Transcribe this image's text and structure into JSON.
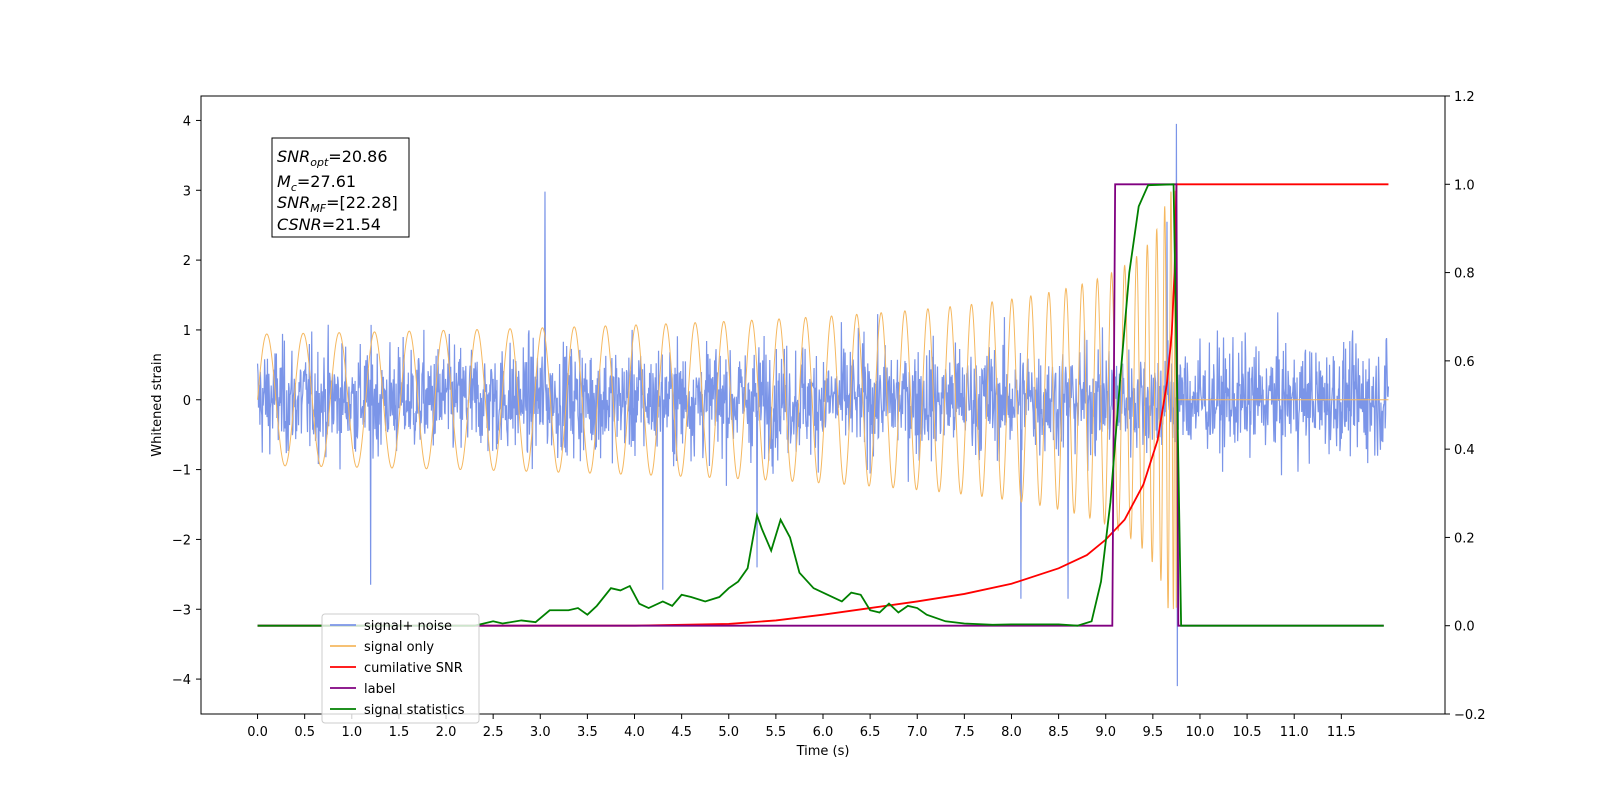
{
  "chart_data": {
    "type": "line",
    "xlabel": "Time (s)",
    "ylabel_left": "Whitened strain",
    "ylabel_right": "",
    "xlim": [
      -0.6,
      12.6
    ],
    "ylim_left": [
      -4.5,
      4.35
    ],
    "ylim_right": [
      -0.2,
      1.2
    ],
    "x_ticks": [
      0.0,
      0.5,
      1.0,
      1.5,
      2.0,
      2.5,
      3.0,
      3.5,
      4.0,
      4.5,
      5.0,
      5.5,
      6.0,
      6.5,
      7.0,
      7.5,
      8.0,
      8.5,
      9.0,
      9.5,
      10.0,
      10.5,
      11.0,
      11.5
    ],
    "x_tick_labels": [
      "0.0",
      "0.5",
      "1.0",
      "1.5",
      "2.0",
      "2.5",
      "3.0",
      "3.5",
      "4.0",
      "4.5",
      "5.0",
      "5.5",
      "6.0",
      "6.5",
      "7.0",
      "7.5",
      "8.0",
      "8.5",
      "9.0",
      "9.5",
      "10.0",
      "10.5",
      "11.0",
      "11.5"
    ],
    "y_left_ticks": [
      4,
      3,
      2,
      1,
      0,
      -1,
      -2,
      -3,
      -4
    ],
    "y_left_tick_labels": [
      "4",
      "3",
      "2",
      "1",
      "0",
      "−1",
      "−2",
      "−3",
      "−4"
    ],
    "y_right_ticks": [
      1.2,
      1.0,
      0.8,
      0.6,
      0.4,
      0.2,
      0.0,
      -0.2
    ],
    "y_right_tick_labels": [
      "1.2",
      "1.0",
      "0.8",
      "0.6",
      "0.4",
      "0.2",
      "0.0",
      "−0.2"
    ],
    "grid": false,
    "legend_position": "lower-left",
    "annotation": {
      "lines": [
        {
          "base": "SNR",
          "sub": "opt",
          "rest": "=20.86"
        },
        {
          "base": "M",
          "sub": "c",
          "rest": "=27.61"
        },
        {
          "base": "SNR",
          "sub": "MF",
          "rest": "=[22.28]"
        },
        {
          "base": "CSNR",
          "sub": "",
          "rest": "=21.54"
        }
      ]
    },
    "series": [
      {
        "name": "signal+ noise",
        "axis": "left",
        "color": "#7b95e8",
        "kind": "noise",
        "x_range": [
          0.0,
          12.0
        ],
        "typical_amplitude": [
          -1.6,
          1.5
        ],
        "peaks": [
          {
            "x": 3.05,
            "y": 2.98
          },
          {
            "x": 1.2,
            "y": -2.65
          },
          {
            "x": 4.3,
            "y": -2.72
          },
          {
            "x": 5.3,
            "y": -2.4
          },
          {
            "x": 8.1,
            "y": -2.85
          },
          {
            "x": 8.6,
            "y": -2.85
          },
          {
            "x": 9.65,
            "y": 2.55
          },
          {
            "x": 9.75,
            "y": 3.95
          },
          {
            "x": 9.76,
            "y": -4.1
          }
        ]
      },
      {
        "name": "signal only",
        "axis": "left",
        "color": "#f5b860",
        "kind": "chirp",
        "x_range": [
          0.0,
          12.0
        ],
        "merger_x": 9.75,
        "peak_amplitude": 3.0
      },
      {
        "name": "cumilative SNR",
        "axis": "right",
        "color": "#ff0000",
        "points": [
          [
            0.0,
            0.0
          ],
          [
            3.0,
            0.0
          ],
          [
            4.0,
            0.0
          ],
          [
            5.0,
            0.004
          ],
          [
            5.5,
            0.012
          ],
          [
            6.0,
            0.025
          ],
          [
            6.5,
            0.04
          ],
          [
            7.0,
            0.055
          ],
          [
            7.5,
            0.072
          ],
          [
            8.0,
            0.095
          ],
          [
            8.5,
            0.13
          ],
          [
            8.8,
            0.16
          ],
          [
            9.0,
            0.195
          ],
          [
            9.2,
            0.24
          ],
          [
            9.4,
            0.32
          ],
          [
            9.55,
            0.42
          ],
          [
            9.65,
            0.55
          ],
          [
            9.7,
            0.66
          ],
          [
            9.73,
            0.8
          ],
          [
            9.75,
            1.0
          ],
          [
            12.0,
            1.0
          ]
        ]
      },
      {
        "name": "label",
        "axis": "right",
        "color": "#800080",
        "points": [
          [
            0.0,
            0.0
          ],
          [
            9.07,
            0.0
          ],
          [
            9.1,
            1.0
          ],
          [
            9.75,
            1.0
          ],
          [
            9.77,
            0.0
          ],
          [
            11.95,
            0.0
          ]
        ]
      },
      {
        "name": "signal statistics",
        "axis": "right",
        "color": "#008000",
        "points": [
          [
            0.0,
            0.0
          ],
          [
            2.3,
            0.0
          ],
          [
            2.5,
            0.01
          ],
          [
            2.6,
            0.005
          ],
          [
            2.8,
            0.012
          ],
          [
            2.95,
            0.008
          ],
          [
            3.1,
            0.035
          ],
          [
            3.3,
            0.035
          ],
          [
            3.4,
            0.04
          ],
          [
            3.5,
            0.025
          ],
          [
            3.6,
            0.045
          ],
          [
            3.75,
            0.085
          ],
          [
            3.85,
            0.08
          ],
          [
            3.95,
            0.09
          ],
          [
            4.05,
            0.05
          ],
          [
            4.15,
            0.04
          ],
          [
            4.3,
            0.055
          ],
          [
            4.4,
            0.045
          ],
          [
            4.5,
            0.07
          ],
          [
            4.6,
            0.065
          ],
          [
            4.75,
            0.055
          ],
          [
            4.9,
            0.065
          ],
          [
            5.0,
            0.085
          ],
          [
            5.1,
            0.1
          ],
          [
            5.2,
            0.13
          ],
          [
            5.3,
            0.25
          ],
          [
            5.35,
            0.22
          ],
          [
            5.45,
            0.17
          ],
          [
            5.55,
            0.24
          ],
          [
            5.65,
            0.2
          ],
          [
            5.75,
            0.12
          ],
          [
            5.9,
            0.085
          ],
          [
            6.05,
            0.07
          ],
          [
            6.2,
            0.055
          ],
          [
            6.3,
            0.075
          ],
          [
            6.4,
            0.07
          ],
          [
            6.5,
            0.035
          ],
          [
            6.6,
            0.03
          ],
          [
            6.7,
            0.05
          ],
          [
            6.8,
            0.03
          ],
          [
            6.9,
            0.045
          ],
          [
            7.0,
            0.04
          ],
          [
            7.1,
            0.025
          ],
          [
            7.3,
            0.01
          ],
          [
            7.5,
            0.005
          ],
          [
            7.8,
            0.002
          ],
          [
            8.0,
            0.003
          ],
          [
            8.5,
            0.003
          ],
          [
            8.7,
            0.0
          ],
          [
            8.85,
            0.01
          ],
          [
            8.95,
            0.1
          ],
          [
            9.05,
            0.28
          ],
          [
            9.15,
            0.55
          ],
          [
            9.25,
            0.8
          ],
          [
            9.35,
            0.95
          ],
          [
            9.45,
            0.998
          ],
          [
            9.72,
            1.0
          ],
          [
            9.8,
            0.0
          ],
          [
            11.95,
            0.0
          ]
        ]
      }
    ]
  }
}
